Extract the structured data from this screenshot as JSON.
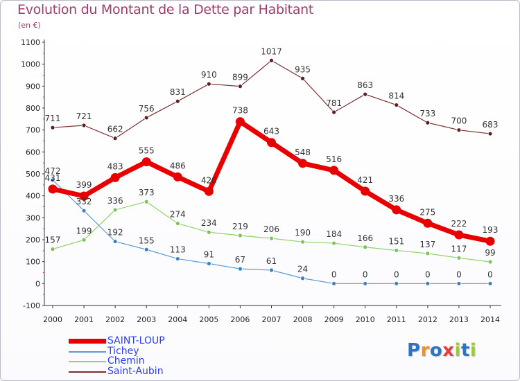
{
  "title": "Evolution du Montant de la Dette par Habitant",
  "unit": "(en €)",
  "logo": {
    "letters": [
      "P",
      "r",
      "o",
      "x",
      "i",
      "t",
      "i"
    ],
    "colors": [
      "#2f73c8",
      "#f0902a",
      "#2f73c8",
      "#e83c3c",
      "#9cc83c",
      "#2f73c8",
      "#9cc83c"
    ]
  },
  "chart_data": {
    "type": "line",
    "x": [
      2000,
      2001,
      2002,
      2003,
      2004,
      2005,
      2006,
      2007,
      2008,
      2009,
      2010,
      2011,
      2012,
      2013,
      2014
    ],
    "ylim": [
      -100,
      1100
    ],
    "yticks": [
      -100,
      0,
      100,
      200,
      300,
      400,
      500,
      600,
      700,
      800,
      900,
      1000,
      1100
    ],
    "grid": false,
    "legend_placement": "bottom-left",
    "series": [
      {
        "name": "SAINT-LOUP",
        "color": "#e80000",
        "values": [
          431,
          399,
          483,
          555,
          486,
          420,
          738,
          643,
          548,
          516,
          421,
          336,
          275,
          222,
          193
        ],
        "labels": [
          "431",
          "399",
          "483",
          "555",
          "486",
          "420",
          "738",
          "643",
          "548",
          "516",
          "421",
          "336",
          "275",
          "222",
          "193"
        ]
      },
      {
        "name": "Tichey",
        "color": "#5b9bd5",
        "values": [
          472,
          332,
          192,
          155,
          113,
          91,
          67,
          61,
          24,
          0,
          0,
          0,
          0,
          0,
          0
        ],
        "labels": [
          "472",
          "332",
          "192",
          "155",
          "113",
          "91",
          "67",
          "61",
          "24",
          "0",
          "0",
          "0",
          "0",
          "0",
          "0"
        ]
      },
      {
        "name": "Chemin",
        "color": "#8fd36a",
        "values": [
          157,
          199,
          336,
          373,
          274,
          234,
          219,
          206,
          190,
          184,
          166,
          151,
          137,
          117,
          99
        ],
        "labels": [
          "157",
          "199",
          "336",
          "373",
          "274",
          "234",
          "219",
          "206",
          "190",
          "184",
          "166",
          "151",
          "137",
          "117",
          "99"
        ]
      },
      {
        "name": "Saint-Aubin",
        "color": "#7a2f2f",
        "values": [
          711,
          721,
          662,
          756,
          831,
          910,
          899,
          1017,
          935,
          781,
          863,
          814,
          733,
          700,
          683
        ],
        "labels": [
          "711",
          "721",
          "662",
          "756",
          "831",
          "910",
          "899",
          "1017",
          "935",
          "781",
          "863",
          "814",
          "733",
          "700",
          "683"
        ]
      }
    ]
  }
}
